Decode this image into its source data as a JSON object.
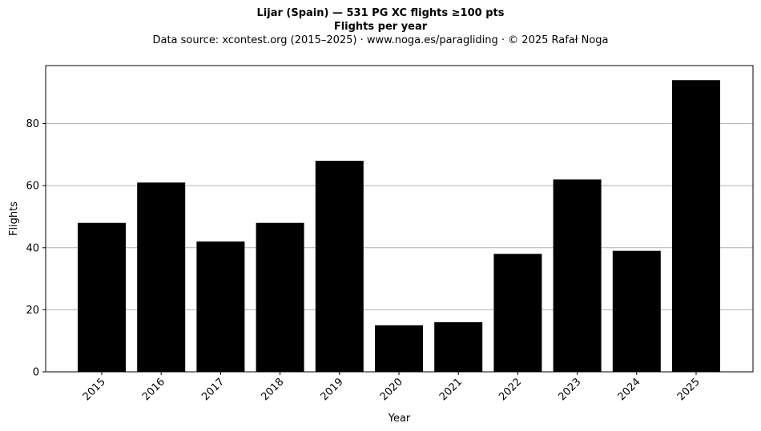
{
  "chart_data": {
    "type": "bar",
    "title": "Lijar (Spain)  —  531 PG XC flights ≥100 pts",
    "subtitle": "Flights per year",
    "source_line": "Data source: xcontest.org (2015–2025)  ·  www.noga.es/paragliding  ·  © 2025 Rafał Noga",
    "xlabel": "Year",
    "ylabel": "Flights",
    "categories": [
      "2015",
      "2016",
      "2017",
      "2018",
      "2019",
      "2020",
      "2021",
      "2022",
      "2023",
      "2024",
      "2025"
    ],
    "values": [
      48,
      61,
      42,
      48,
      68,
      15,
      16,
      38,
      62,
      39,
      94
    ],
    "ylim": [
      0,
      98.7
    ],
    "yticks": [
      0,
      20,
      40,
      60,
      80
    ],
    "grid": "y-major",
    "legend": "none",
    "bar_color": "#000000",
    "grid_color": "#b0b0b0"
  }
}
